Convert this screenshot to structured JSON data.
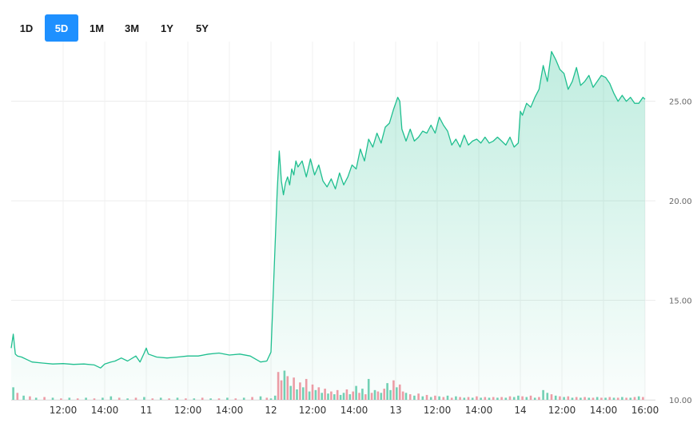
{
  "range_selector": {
    "buttons": [
      {
        "label": "1D",
        "active": false
      },
      {
        "label": "5D",
        "active": true
      },
      {
        "label": "1M",
        "active": false
      },
      {
        "label": "3M",
        "active": false
      },
      {
        "label": "1Y",
        "active": false
      },
      {
        "label": "5Y",
        "active": false
      }
    ],
    "active_color": "#1e90ff"
  },
  "chart_data": {
    "type": "area",
    "title": "",
    "xlabel": "",
    "ylabel": "",
    "ylim": [
      10,
      28
    ],
    "y_ticks": [
      "10.00",
      "15.00",
      "20.00",
      "25.00"
    ],
    "y_axis_position": "right",
    "grid": true,
    "line_color": "#1fbf8f",
    "fill_color": "#1fbf8f",
    "x_tick_labels": [
      "12:00",
      "14:00",
      "11",
      "12:00",
      "14:00",
      "12",
      "12:00",
      "14:00",
      "13",
      "12:00",
      "14:00",
      "14",
      "12:00",
      "14:00",
      "16:00"
    ],
    "x_ticks_hours": [
      2.5,
      4.5,
      6.5,
      8.5,
      10.5,
      12.5,
      14.5,
      16.5,
      18.5,
      20.5,
      22.5,
      24.5,
      26.5,
      28.5,
      30.5
    ],
    "price_series": {
      "x": [
        0,
        0.1,
        0.2,
        0.3,
        0.5,
        0.8,
        1.0,
        1.5,
        2.0,
        2.5,
        3.0,
        3.5,
        4.0,
        4.3,
        4.5,
        4.8,
        5.0,
        5.3,
        5.6,
        6.0,
        6.2,
        6.4,
        6.5,
        6.6,
        7.0,
        7.5,
        8.0,
        8.5,
        9.0,
        9.5,
        10.0,
        10.5,
        11.0,
        11.5,
        12.0,
        12.3,
        12.5,
        12.8,
        12.9,
        13.0,
        13.1,
        13.2,
        13.3,
        13.4,
        13.5,
        13.6,
        13.7,
        13.8,
        14.0,
        14.2,
        14.4,
        14.6,
        14.8,
        15.0,
        15.2,
        15.4,
        15.6,
        15.8,
        16.0,
        16.2,
        16.4,
        16.6,
        16.8,
        17.0,
        17.2,
        17.4,
        17.6,
        17.8,
        18.0,
        18.2,
        18.4,
        18.6,
        18.7,
        18.8,
        19.0,
        19.2,
        19.4,
        19.6,
        19.8,
        20.0,
        20.2,
        20.4,
        20.6,
        20.8,
        21.0,
        21.2,
        21.4,
        21.6,
        21.8,
        22.0,
        22.2,
        22.4,
        22.6,
        22.8,
        23.0,
        23.2,
        23.4,
        23.6,
        23.8,
        24.0,
        24.2,
        24.4,
        24.5,
        24.6,
        24.8,
        25.0,
        25.2,
        25.4,
        25.6,
        25.8,
        26.0,
        26.2,
        26.4,
        26.6,
        26.8,
        27.0,
        27.2,
        27.4,
        27.6,
        27.8,
        28.0,
        28.2,
        28.4,
        28.6,
        28.8,
        29.0,
        29.2,
        29.4,
        29.6,
        29.8,
        30.0,
        30.2,
        30.4,
        30.5
      ],
      "y": [
        12.6,
        13.3,
        12.3,
        12.2,
        12.15,
        12.0,
        11.9,
        11.85,
        11.8,
        11.82,
        11.78,
        11.8,
        11.75,
        11.6,
        11.8,
        11.9,
        11.95,
        12.1,
        11.95,
        12.2,
        11.9,
        12.35,
        12.6,
        12.3,
        12.15,
        12.1,
        12.15,
        12.2,
        12.2,
        12.3,
        12.35,
        12.25,
        12.3,
        12.2,
        11.9,
        11.95,
        12.4,
        20.5,
        22.5,
        21.0,
        20.3,
        20.9,
        21.2,
        20.8,
        21.6,
        21.3,
        22.0,
        21.7,
        22.0,
        21.2,
        22.1,
        21.3,
        21.8,
        21.0,
        20.7,
        21.1,
        20.6,
        21.4,
        20.8,
        21.2,
        21.8,
        21.6,
        22.6,
        22.0,
        23.1,
        22.7,
        23.4,
        22.9,
        23.7,
        23.9,
        24.6,
        25.2,
        25.0,
        23.6,
        23.0,
        23.6,
        23.0,
        23.2,
        23.5,
        23.4,
        23.8,
        23.4,
        24.2,
        23.8,
        23.5,
        22.8,
        23.1,
        22.7,
        23.3,
        22.8,
        23.0,
        23.1,
        22.9,
        23.2,
        22.9,
        23.0,
        23.2,
        23.0,
        22.8,
        23.2,
        22.7,
        22.9,
        24.5,
        24.3,
        24.9,
        24.7,
        25.2,
        25.6,
        26.8,
        26.0,
        27.5,
        27.1,
        26.6,
        26.4,
        25.6,
        26.0,
        26.7,
        25.8,
        26.0,
        26.3,
        25.7,
        26.0,
        26.3,
        26.2,
        25.9,
        25.4,
        25.0,
        25.3,
        25.0,
        25.2,
        24.9,
        24.9,
        25.2,
        25.1
      ]
    },
    "volume_series": {
      "x": [
        0.1,
        0.3,
        0.6,
        0.9,
        1.2,
        1.6,
        2.0,
        2.4,
        2.8,
        3.2,
        3.6,
        4.0,
        4.4,
        4.8,
        5.2,
        5.6,
        6.0,
        6.4,
        6.8,
        7.2,
        7.6,
        8.0,
        8.4,
        8.8,
        9.2,
        9.6,
        10.0,
        10.4,
        10.8,
        11.2,
        11.6,
        12.0,
        12.3,
        12.5,
        12.7,
        12.85,
        13.0,
        13.15,
        13.3,
        13.45,
        13.6,
        13.75,
        13.9,
        14.05,
        14.2,
        14.35,
        14.5,
        14.65,
        14.8,
        14.95,
        15.1,
        15.25,
        15.4,
        15.55,
        15.7,
        15.85,
        16.0,
        16.15,
        16.3,
        16.45,
        16.6,
        16.75,
        16.9,
        17.05,
        17.2,
        17.35,
        17.5,
        17.65,
        17.8,
        17.95,
        18.1,
        18.25,
        18.4,
        18.55,
        18.7,
        18.85,
        19.0,
        19.2,
        19.4,
        19.6,
        19.8,
        20.0,
        20.2,
        20.4,
        20.6,
        20.8,
        21.0,
        21.2,
        21.4,
        21.6,
        21.8,
        22.0,
        22.2,
        22.4,
        22.6,
        22.8,
        23.0,
        23.2,
        23.4,
        23.6,
        23.8,
        24.0,
        24.2,
        24.4,
        24.6,
        24.8,
        25.0,
        25.2,
        25.4,
        25.6,
        25.8,
        26.0,
        26.2,
        26.4,
        26.6,
        26.8,
        27.0,
        27.2,
        27.4,
        27.6,
        27.8,
        28.0,
        28.2,
        28.4,
        28.6,
        28.8,
        29.0,
        29.2,
        29.4,
        29.6,
        29.8,
        30.0,
        30.2,
        30.4
      ],
      "v": [
        18,
        10,
        6,
        5,
        3,
        4,
        3,
        2,
        3,
        2,
        3,
        2,
        3,
        5,
        3,
        2,
        3,
        4,
        2,
        3,
        2,
        3,
        2,
        2,
        3,
        2,
        2,
        3,
        2,
        3,
        4,
        5,
        3,
        2,
        6,
        40,
        28,
        42,
        34,
        20,
        32,
        15,
        25,
        18,
        30,
        12,
        22,
        14,
        18,
        10,
        16,
        9,
        12,
        8,
        14,
        7,
        10,
        15,
        8,
        12,
        20,
        10,
        16,
        8,
        30,
        10,
        14,
        12,
        10,
        16,
        24,
        14,
        28,
        18,
        22,
        12,
        10,
        8,
        6,
        9,
        5,
        7,
        4,
        6,
        5,
        4,
        6,
        3,
        5,
        4,
        3,
        4,
        3,
        5,
        3,
        4,
        3,
        4,
        3,
        4,
        3,
        5,
        4,
        6,
        5,
        4,
        6,
        3,
        4,
        14,
        10,
        8,
        6,
        5,
        4,
        5,
        3,
        4,
        3,
        4,
        3,
        3,
        4,
        3,
        3,
        4,
        3,
        3,
        4,
        3,
        3,
        4,
        5,
        4,
        3
      ],
      "up": [
        true,
        false,
        true,
        false,
        true,
        false,
        true,
        false,
        true,
        false,
        true,
        false,
        true,
        true,
        false,
        true,
        false,
        true,
        false,
        true,
        false,
        true,
        false,
        true,
        false,
        true,
        false,
        true,
        false,
        true,
        false,
        true,
        false,
        true,
        true,
        false,
        false,
        true,
        false,
        true,
        false,
        true,
        false,
        true,
        false,
        true,
        false,
        true,
        false,
        true,
        false,
        true,
        false,
        true,
        false,
        true,
        true,
        false,
        true,
        false,
        true,
        false,
        true,
        false,
        true,
        false,
        true,
        false,
        true,
        false,
        true,
        true,
        false,
        true,
        false,
        false,
        true,
        false,
        true,
        false,
        true,
        false,
        true,
        false,
        true,
        false,
        true,
        false,
        true,
        false,
        true,
        false,
        true,
        false,
        true,
        false,
        true,
        false,
        true,
        false,
        true,
        false,
        true,
        true,
        false,
        true,
        false,
        true,
        false,
        true,
        true,
        false,
        true,
        false,
        true,
        false,
        true,
        false,
        true,
        false,
        true,
        false,
        true,
        false,
        true,
        false,
        true,
        false,
        true,
        false,
        true,
        false,
        true,
        false,
        true,
        false
      ],
      "up_color": "#5cc9a8",
      "down_color": "#f08a96"
    }
  }
}
